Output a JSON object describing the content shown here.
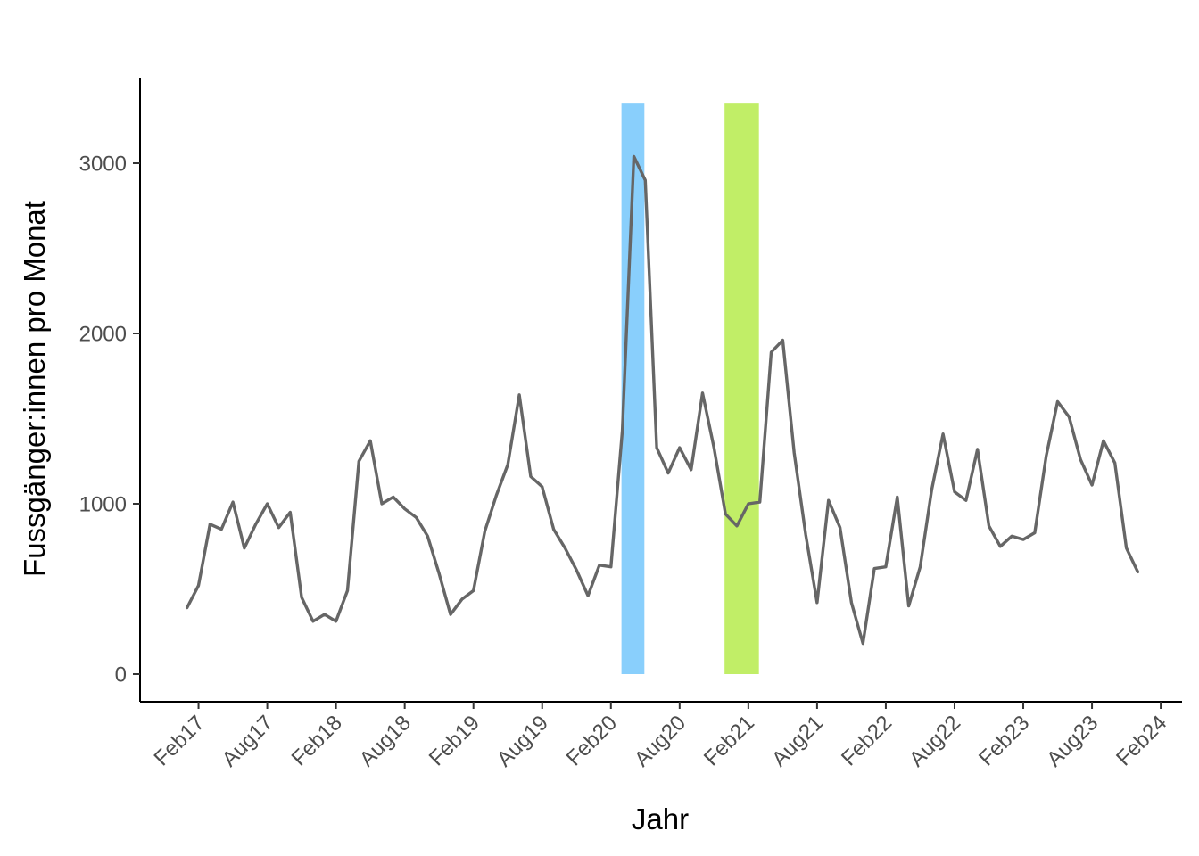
{
  "chart_data": {
    "type": "line",
    "title": "",
    "xlabel": "Jahr",
    "ylabel": "Fussgänger:innen pro Monat",
    "x_start": "2017-01",
    "ylim": [
      -150,
      3500
    ],
    "y_ticks": [
      0,
      1000,
      2000,
      3000
    ],
    "x_tick_labels": [
      "Feb17",
      "Aug17",
      "Feb18",
      "Aug18",
      "Feb19",
      "Aug19",
      "Feb20",
      "Aug20",
      "Feb21",
      "Aug21",
      "Feb22",
      "Aug22",
      "Feb23",
      "Aug23",
      "Feb24"
    ],
    "grid": false,
    "legend": "none",
    "line_color": "#666666",
    "highlight_bands": [
      {
        "x_start": "2020-03",
        "x_end": "2020-05",
        "y_top": 3350,
        "color": "#89CFFC"
      },
      {
        "x_start": "2020-12",
        "x_end": "2021-03",
        "y_top": 3350,
        "color": "#C1EE67"
      }
    ],
    "series": [
      {
        "values": [
          390,
          520,
          880,
          850,
          1010,
          740,
          880,
          1000,
          860,
          950,
          450,
          310,
          350,
          310,
          490,
          1250,
          1370,
          1000,
          1040,
          970,
          920,
          810,
          590,
          350,
          440,
          490,
          840,
          1050,
          1230,
          1640,
          1160,
          1100,
          850,
          740,
          610,
          460,
          640,
          630,
          1430,
          3040,
          2900,
          1330,
          1180,
          1330,
          1200,
          1650,
          1330,
          940,
          870,
          1000,
          1010,
          1890,
          1960,
          1300,
          820,
          420,
          1020,
          860,
          420,
          180,
          620,
          630,
          1040,
          400,
          630,
          1080,
          1410,
          1070,
          1020,
          1320,
          870,
          750,
          810,
          790,
          830,
          1280,
          1600,
          1510,
          1260,
          1110,
          1370,
          1240,
          740,
          600
        ]
      }
    ]
  }
}
